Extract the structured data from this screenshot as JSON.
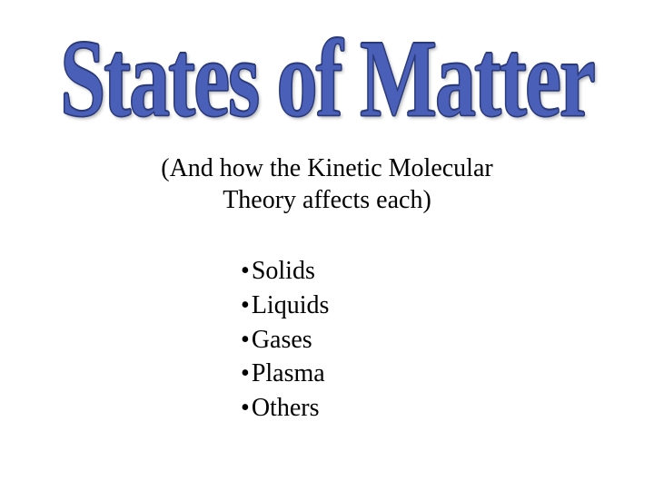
{
  "title": "States of Matter",
  "subtitle_line1": "(And how the Kinetic Molecular",
  "subtitle_line2": "Theory affects each)",
  "bullets": {
    "0": "Solids",
    "1": "Liquids",
    "2": "Gases",
    "3": "Plasma",
    "4": "Others"
  },
  "colors": {
    "title_color": "#4a5fb8",
    "title_outline": "#2a3a7a",
    "text_color": "#000000",
    "background": "#ffffff"
  },
  "typography": {
    "title_fontsize": 90,
    "subtitle_fontsize": 28,
    "bullet_fontsize": 28,
    "font_family": "Times New Roman"
  }
}
